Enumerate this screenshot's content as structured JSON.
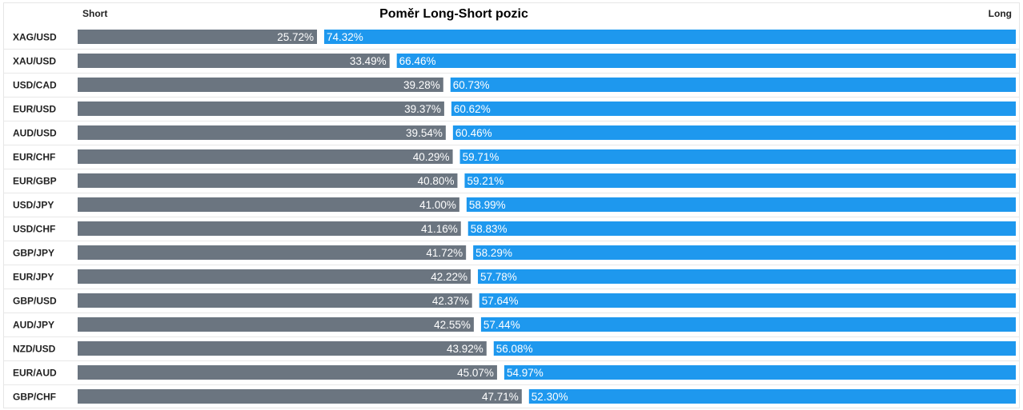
{
  "chart_data": {
    "type": "bar",
    "orientation": "horizontal-stacked",
    "title": "Poměr Long-Short pozic",
    "left_label": "Short",
    "right_label": "Long",
    "colors": {
      "short": "#6b7580",
      "long": "#1e98ee"
    },
    "categories": [
      "XAG/USD",
      "XAU/USD",
      "USD/CAD",
      "EUR/USD",
      "AUD/USD",
      "EUR/CHF",
      "EUR/GBP",
      "USD/JPY",
      "USD/CHF",
      "GBP/JPY",
      "EUR/JPY",
      "GBP/USD",
      "AUD/JPY",
      "NZD/USD",
      "EUR/AUD",
      "GBP/CHF"
    ],
    "series": [
      {
        "name": "Short",
        "values": [
          25.72,
          33.49,
          39.28,
          39.37,
          39.54,
          40.29,
          40.8,
          41.0,
          41.16,
          41.72,
          42.22,
          42.37,
          42.55,
          43.92,
          45.07,
          47.71
        ],
        "labels": [
          "25.72%",
          "33.49%",
          "39.28%",
          "39.37%",
          "39.54%",
          "40.29%",
          "40.80%",
          "41.00%",
          "41.16%",
          "41.72%",
          "42.22%",
          "42.37%",
          "42.55%",
          "43.92%",
          "45.07%",
          "47.71%"
        ]
      },
      {
        "name": "Long",
        "values": [
          74.32,
          66.46,
          60.73,
          60.62,
          60.46,
          59.71,
          59.21,
          58.99,
          58.83,
          58.29,
          57.78,
          57.64,
          57.44,
          56.08,
          54.97,
          52.3
        ],
        "labels": [
          "74.32%",
          "66.46%",
          "60.73%",
          "60.62%",
          "60.46%",
          "59.71%",
          "59.21%",
          "58.99%",
          "58.83%",
          "58.29%",
          "57.78%",
          "57.64%",
          "57.44%",
          "56.08%",
          "54.97%",
          "52.30%"
        ]
      }
    ]
  }
}
